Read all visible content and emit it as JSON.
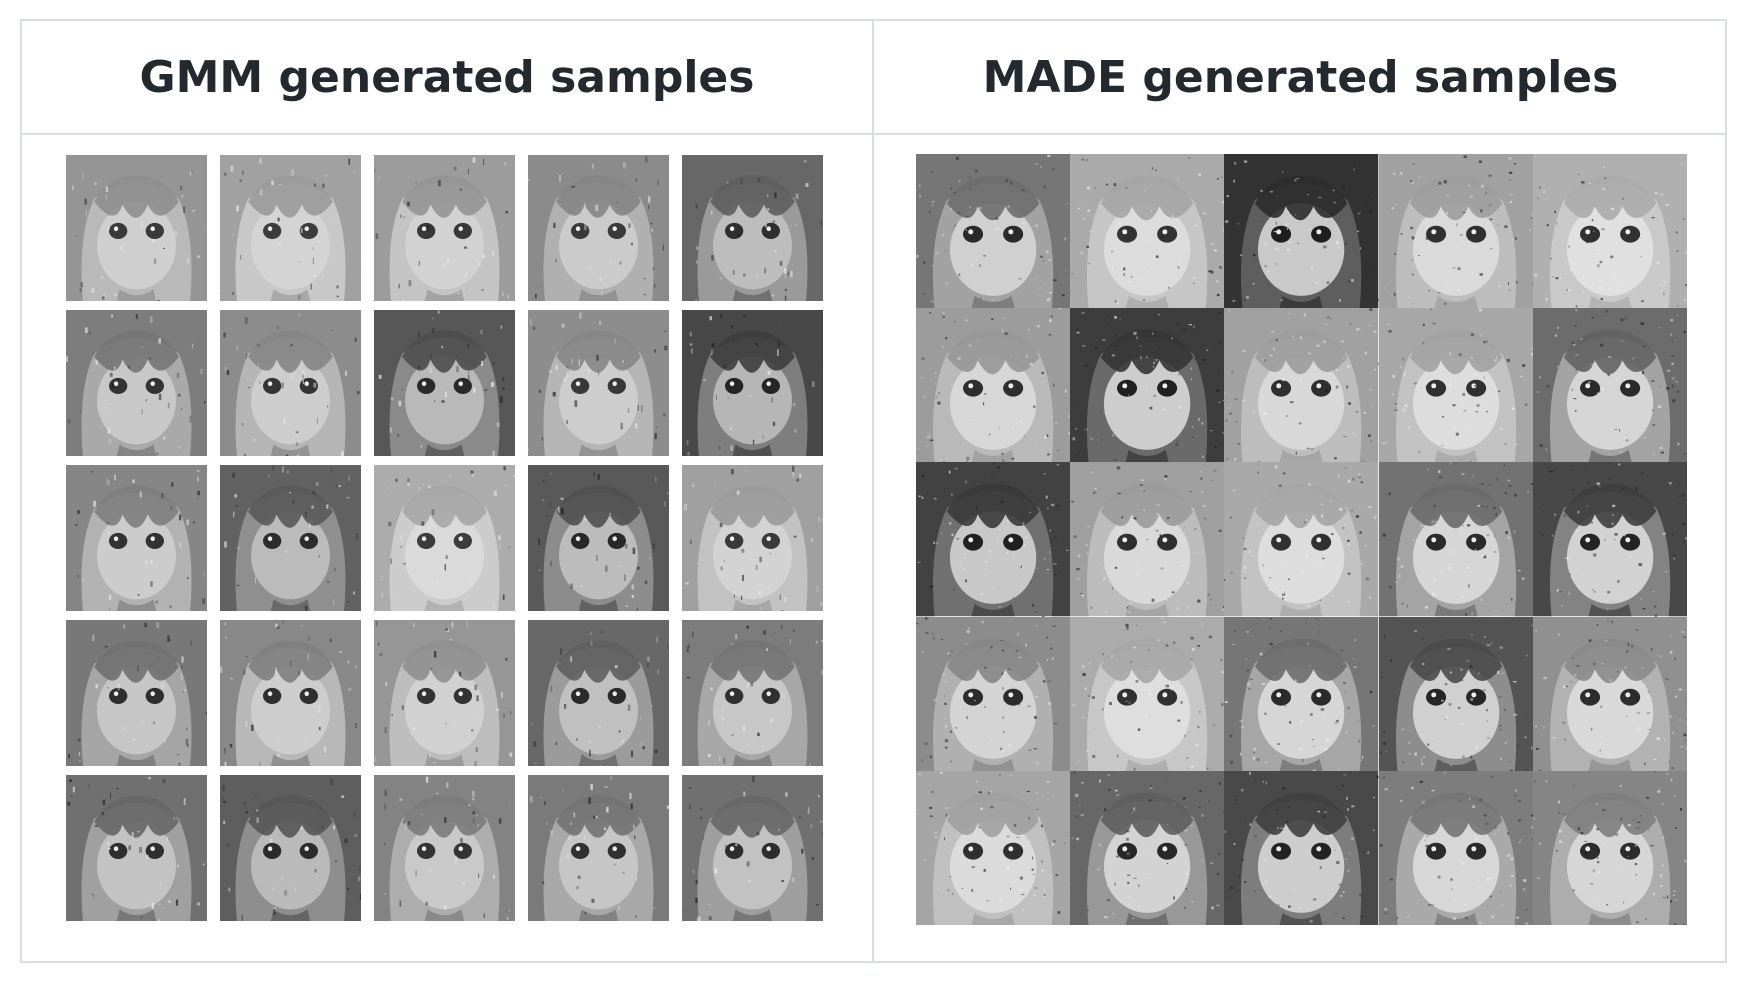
{
  "table": {
    "headers": {
      "left": "GMM generated samples",
      "right": "MADE generated samples"
    }
  },
  "gmm": {
    "tiles": [
      {
        "bg": "#b9b9b9",
        "hair": "#8e8e8e",
        "face": "#cfcfcf",
        "eye": "#3a3a3a"
      },
      {
        "bg": "#c8c8c8",
        "hair": "#9a9a9a",
        "face": "#d4d4d4",
        "eye": "#3d3d3d"
      },
      {
        "bg": "#c4c4c4",
        "hair": "#959595",
        "face": "#d2d2d2",
        "eye": "#383838"
      },
      {
        "bg": "#b0b0b0",
        "hair": "#858585",
        "face": "#cbcbcb",
        "eye": "#3a3a3a"
      },
      {
        "bg": "#9a9a9a",
        "hair": "#5e5e5e",
        "face": "#bdbdbd",
        "eye": "#2e2e2e"
      },
      {
        "bg": "#a9a9a9",
        "hair": "#767676",
        "face": "#c8c8c8",
        "eye": "#333333"
      },
      {
        "bg": "#b5b5b5",
        "hair": "#858585",
        "face": "#cdcdcd",
        "eye": "#353535"
      },
      {
        "bg": "#8a8a8a",
        "hair": "#4e4e4e",
        "face": "#b9b9b9",
        "eye": "#2a2a2a"
      },
      {
        "bg": "#b5b5b5",
        "hair": "#868686",
        "face": "#cdcdcd",
        "eye": "#383838"
      },
      {
        "bg": "#7e7e7e",
        "hair": "#3e3e3e",
        "face": "#b6b6b6",
        "eye": "#252525"
      },
      {
        "bg": "#b2b2b2",
        "hair": "#7e7e7e",
        "face": "#cccccc",
        "eye": "#333333"
      },
      {
        "bg": "#8f8f8f",
        "hair": "#5a5a5a",
        "face": "#bbbbbb",
        "eye": "#2c2c2c"
      },
      {
        "bg": "#cccccc",
        "hair": "#a6a6a6",
        "face": "#dadada",
        "eye": "#3c3c3c"
      },
      {
        "bg": "#8c8c8c",
        "hair": "#505050",
        "face": "#bcbcbc",
        "eye": "#282828"
      },
      {
        "bg": "#c2c2c2",
        "hair": "#9a9a9a",
        "face": "#d3d3d3",
        "eye": "#3a3a3a"
      },
      {
        "bg": "#a5a5a5",
        "hair": "#707070",
        "face": "#c6c6c6",
        "eye": "#2e2e2e"
      },
      {
        "bg": "#b8b8b8",
        "hair": "#7f7f7f",
        "face": "#cdcdcd",
        "eye": "#2f2f2f"
      },
      {
        "bg": "#bdbdbd",
        "hair": "#8f8f8f",
        "face": "#d1d1d1",
        "eye": "#333333"
      },
      {
        "bg": "#9b9b9b",
        "hair": "#5f5f5f",
        "face": "#c0c0c0",
        "eye": "#2b2b2b"
      },
      {
        "bg": "#a7a7a7",
        "hair": "#747474",
        "face": "#c7c7c7",
        "eye": "#303030"
      },
      {
        "bg": "#a0a0a0",
        "hair": "#676767",
        "face": "#c3c3c3",
        "eye": "#2f2f2f"
      },
      {
        "bg": "#8e8e8e",
        "hair": "#565656",
        "face": "#bababa",
        "eye": "#2b2b2b"
      },
      {
        "bg": "#adadad",
        "hair": "#7b7b7b",
        "face": "#c9c9c9",
        "eye": "#343434"
      },
      {
        "bg": "#a8a8a8",
        "hair": "#727272",
        "face": "#c6c6c6",
        "eye": "#313131"
      },
      {
        "bg": "#9e9e9e",
        "hair": "#676767",
        "face": "#c2c2c2",
        "eye": "#2d2d2d"
      }
    ]
  },
  "made": {
    "tiles": [
      {
        "bg": "#a2a2a2",
        "hair": "#6e6e6e",
        "face": "#d0d0d0",
        "eye": "#2a2a2a"
      },
      {
        "bg": "#c6c6c6",
        "hair": "#a4a4a4",
        "face": "#dcdcdc",
        "eye": "#333333"
      },
      {
        "bg": "#5e5e5e",
        "hair": "#2c2c2c",
        "face": "#c9c9c9",
        "eye": "#1f1f1f"
      },
      {
        "bg": "#bdbdbd",
        "hair": "#9c9c9c",
        "face": "#dadada",
        "eye": "#303030"
      },
      {
        "bg": "#c9c9c9",
        "hair": "#ababab",
        "face": "#e0e0e0",
        "eye": "#313131"
      },
      {
        "bg": "#b9b9b9",
        "hair": "#979797",
        "face": "#d7d7d7",
        "eye": "#2e2e2e"
      },
      {
        "bg": "#6a6a6a",
        "hair": "#353535",
        "face": "#cdcdcd",
        "eye": "#202020"
      },
      {
        "bg": "#bdbdbd",
        "hair": "#9c9c9c",
        "face": "#d8d8d8",
        "eye": "#2f2f2f"
      },
      {
        "bg": "#c2c2c2",
        "hair": "#a2a2a2",
        "face": "#dddddd",
        "eye": "#303030"
      },
      {
        "bg": "#a3a3a3",
        "hair": "#636363",
        "face": "#d5d5d5",
        "eye": "#2a2a2a"
      },
      {
        "bg": "#707070",
        "hair": "#3a3a3a",
        "face": "#c8c8c8",
        "eye": "#212121"
      },
      {
        "bg": "#bcbcbc",
        "hair": "#9a9a9a",
        "face": "#d9d9d9",
        "eye": "#2f2f2f"
      },
      {
        "bg": "#c3c3c3",
        "hair": "#a5a5a5",
        "face": "#dddddd",
        "eye": "#313131"
      },
      {
        "bg": "#a4a4a4",
        "hair": "#6a6a6a",
        "face": "#d6d6d6",
        "eye": "#2a2a2a"
      },
      {
        "bg": "#838383",
        "hair": "#3e3e3e",
        "face": "#d2d2d2",
        "eye": "#242424"
      },
      {
        "bg": "#b0b0b0",
        "hair": "#868686",
        "face": "#d4d4d4",
        "eye": "#2c2c2c"
      },
      {
        "bg": "#c7c7c7",
        "hair": "#a6a6a6",
        "face": "#dedede",
        "eye": "#313131"
      },
      {
        "bg": "#a6a6a6",
        "hair": "#6d6d6d",
        "face": "#d6d6d6",
        "eye": "#2b2b2b"
      },
      {
        "bg": "#8d8d8d",
        "hair": "#4a4a4a",
        "face": "#d0d0d0",
        "eye": "#262626"
      },
      {
        "bg": "#b2b2b2",
        "hair": "#8a8a8a",
        "face": "#d9d9d9",
        "eye": "#2d2d2d"
      },
      {
        "bg": "#c0c0c0",
        "hair": "#a0a0a0",
        "face": "#dbdbdb",
        "eye": "#303030"
      },
      {
        "bg": "#989898",
        "hair": "#5e5e5e",
        "face": "#d3d3d3",
        "eye": "#282828"
      },
      {
        "bg": "#7d7d7d",
        "hair": "#404040",
        "face": "#cdcdcd",
        "eye": "#232323"
      },
      {
        "bg": "#a9a9a9",
        "hair": "#767676",
        "face": "#d7d7d7",
        "eye": "#2b2b2b"
      },
      {
        "bg": "#adadad",
        "hair": "#7e7e7e",
        "face": "#d6d6d6",
        "eye": "#2c2c2c"
      }
    ]
  }
}
